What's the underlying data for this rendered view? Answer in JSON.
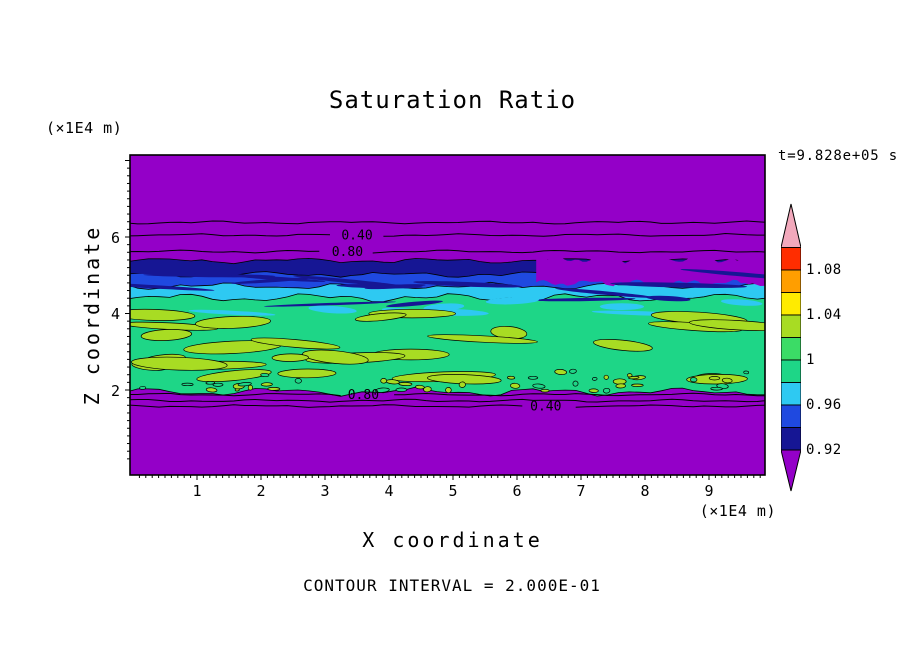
{
  "title": "Saturation Ratio",
  "timestamp": "t=9.828e+05 s",
  "footer_note": "CONTOUR INTERVAL = 2.000E-01",
  "axes": {
    "x_label": "X coordinate",
    "y_label": "Z coordinate",
    "x_unit": "(×1E4 m)",
    "y_unit": "(×1E4 m)",
    "x_ticks": [
      "1",
      "2",
      "3",
      "4",
      "5",
      "6",
      "7",
      "8",
      "9"
    ],
    "y_ticks": [
      "6",
      "4",
      "2"
    ]
  },
  "colorbar": {
    "labels": [
      "1.08",
      "1.04",
      "1",
      "0.96",
      "0.92"
    ],
    "top_arrow_color": "#F2A9BC",
    "bottom_arrow_color": "#9400C8",
    "segments": [
      {
        "color": "#FF2D00",
        "value": "1.08-1.10"
      },
      {
        "color": "#FF9E00",
        "value": "1.06-1.08"
      },
      {
        "color": "#FFEB00",
        "value": "1.04-1.06"
      },
      {
        "color": "#A8DC23",
        "value": "1.02-1.04"
      },
      {
        "color": "#3BDC66",
        "value": "1.00-1.02"
      },
      {
        "color": "#1ED687",
        "value": "0.98-1.00"
      },
      {
        "color": "#2EC9F2",
        "value": "0.96-0.98"
      },
      {
        "color": "#1F49E0",
        "value": "0.94-0.96"
      },
      {
        "color": "#161694",
        "value": "0.92-0.94"
      }
    ]
  },
  "chart_data": {
    "type": "contour",
    "title": "Saturation Ratio",
    "xlabel": "X coordinate (×1E4 m)",
    "ylabel": "Z coordinate (×1E4 m)",
    "time_label": "t=9.828e+05 s",
    "x_range": [
      0,
      9.9
    ],
    "z_range": [
      0,
      8.2
    ],
    "x_tick_values": [
      1,
      2,
      3,
      4,
      5,
      6,
      7,
      8,
      9
    ],
    "z_tick_values": [
      2,
      4,
      6
    ],
    "contour_interval": 0.2,
    "colorbar_tick_values": [
      1.08,
      1.04,
      1,
      0.96,
      0.92
    ],
    "colorbar_level_step": 0.02,
    "bands": [
      {
        "name": "subsaturated-background",
        "color": "#9400C8",
        "z_from": 0,
        "z_to": 8.2,
        "value": "< 0.92"
      },
      {
        "name": "navy-layer",
        "color": "#161694",
        "z_from": 4.7,
        "z_to": 5.38,
        "amp": 3,
        "seed": 11,
        "outline": "#000000",
        "value": "0.92-0.94"
      },
      {
        "name": "blue-layer",
        "color": "#1F49E0",
        "z_from": 4.48,
        "z_to": 5.02,
        "amp": 3,
        "seed": 23,
        "outline": "#000000",
        "value": "0.94-0.96"
      },
      {
        "name": "cyan-layer",
        "color": "#2EC9F2",
        "z_from": 4.18,
        "z_to": 4.72,
        "amp": 3.5,
        "seed": 37,
        "outline": "#000000",
        "value": "0.96-0.98"
      },
      {
        "name": "green-layer",
        "color": "#1ED687",
        "z_from": 1.95,
        "z_to": 4.42,
        "amp": 4.5,
        "seed": 51,
        "outline": "#000000",
        "value": "0.98-1.02"
      }
    ],
    "features": {
      "purple_patch": {
        "color": "#9400C8",
        "x_from": 6.3,
        "x_to": 9.95,
        "z_from": 4.8,
        "z_to": 5.42,
        "amp": 4,
        "seed": 7
      },
      "dark_filaments": {
        "color": "#161694",
        "count": 16,
        "z_from": 4.2,
        "z_to": 5.05,
        "rx_min": 22,
        "rx_max": 70,
        "ry_min": 1.2,
        "ry_max": 2.6,
        "seed": 91
      },
      "cyan_streaks": {
        "color": "#2EC9F2",
        "count": 9,
        "z_from": 4.0,
        "z_to": 4.4,
        "rx_min": 20,
        "rx_max": 60,
        "ry_min": 2,
        "ry_max": 4,
        "seed": 55
      },
      "yellowgreen_blobs": {
        "color": "#A8DC23",
        "count": 28,
        "z_from": 2.15,
        "z_to": 4.05,
        "rx_min": 15,
        "rx_max": 55,
        "ry_min": 3,
        "ry_max": 6.5,
        "outline": "#000000",
        "seed": 77
      },
      "speckles": {
        "colors": [
          "#1ED687",
          "#A8DC23"
        ],
        "count": 46,
        "z_from": 1.98,
        "z_to": 2.5,
        "rx_min": 2,
        "rx_max": 7,
        "ry_min": 1.2,
        "ry_max": 2.8,
        "outline": "#000000",
        "seed": 99
      }
    },
    "line_contours": [
      {
        "z": 6.38,
        "label": null,
        "label_x": null
      },
      {
        "z": 6.05,
        "label": "0.40",
        "label_x": 3.5
      },
      {
        "z": 5.62,
        "label": "0.80",
        "label_x": 3.35
      },
      {
        "z": 1.88,
        "label": "0.80",
        "label_x": 3.6
      },
      {
        "z": 1.72,
        "label": null,
        "label_x": null
      },
      {
        "z": 1.58,
        "label": "0.40",
        "label_x": 6.45
      }
    ]
  }
}
